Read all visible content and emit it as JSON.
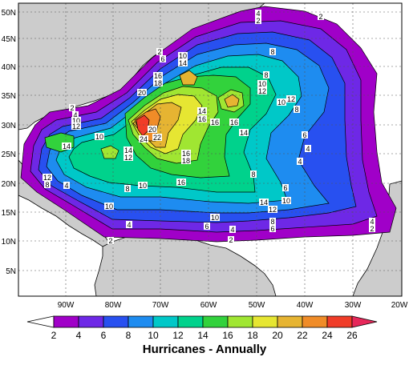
{
  "map": {
    "title": "Hurricanes - Annually",
    "lat_ticks": [
      "50N",
      "45N",
      "40N",
      "35N",
      "30N",
      "25N",
      "20N",
      "15N",
      "10N",
      "5N"
    ],
    "lon_ticks": [
      "90W",
      "80W",
      "70W",
      "60W",
      "50W",
      "40W",
      "30W",
      "20W"
    ],
    "colorbar_ticks": [
      "2",
      "4",
      "6",
      "8",
      "10",
      "12",
      "14",
      "16",
      "18",
      "20",
      "22",
      "24",
      "26"
    ],
    "colors": {
      "below": "#ffffff",
      "c2": "#a000c8",
      "c4": "#6e28e6",
      "c6": "#2850f0",
      "c8": "#1e8cf0",
      "c10": "#00c8c8",
      "c12": "#00d28c",
      "c14": "#32d23c",
      "c16": "#a0e632",
      "c18": "#e6e632",
      "c20": "#e6b432",
      "c22": "#f08c28",
      "c24": "#f03c28",
      "c26": "#e6285a",
      "land": "#cccccc",
      "ocean_bg": "#ffffff"
    },
    "contour_labels": [
      "2",
      "4",
      "6",
      "8",
      "10",
      "12",
      "14",
      "16",
      "18",
      "20",
      "22",
      "24"
    ]
  }
}
